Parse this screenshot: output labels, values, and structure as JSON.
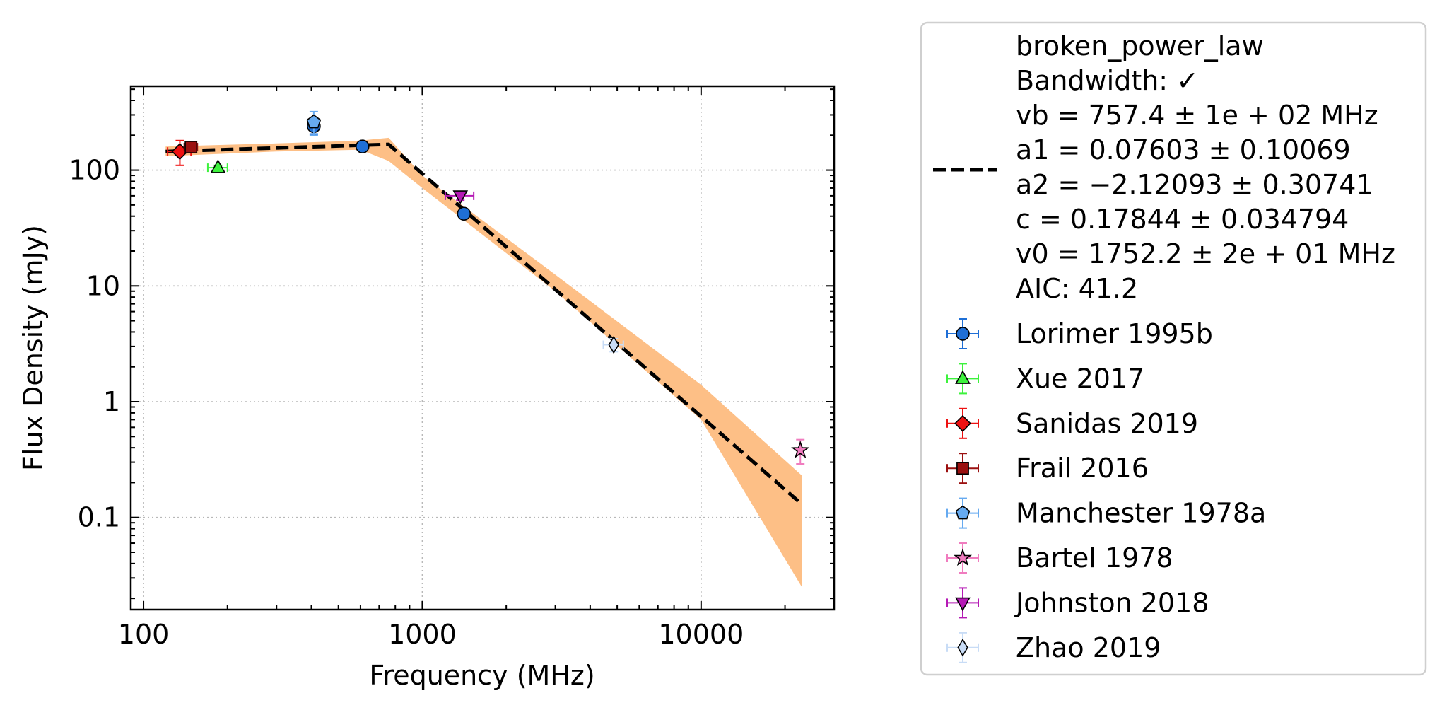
{
  "chart_data": {
    "type": "scatter",
    "title": "",
    "xlabel": "Frequency (MHz)",
    "ylabel": "Flux Density (mJy)",
    "xscale": "log",
    "yscale": "log",
    "xlim": [
      90,
      30000
    ],
    "ylim": [
      0.016,
      530
    ],
    "grid": true,
    "legend_position": "outside-right",
    "x_ticks": [
      {
        "value": 100,
        "label": "100"
      },
      {
        "value": 1000,
        "label": "1000"
      },
      {
        "value": 10000,
        "label": "10000"
      }
    ],
    "y_ticks": [
      {
        "value": 0.1,
        "label": "0.1"
      },
      {
        "value": 1,
        "label": "1"
      },
      {
        "value": 10,
        "label": "10"
      },
      {
        "value": 100,
        "label": "100"
      }
    ],
    "fit": {
      "label_lines": [
        "broken_power_law",
        "Bandwidth: ✓",
        "vb = 757.4 ± 1e + 02 MHz",
        "a1 = 0.07603 ± 0.10069",
        "a2 = −2.12093 ± 0.30741",
        "c = 0.17844 ± 0.034794",
        "v0 = 1752.2 ± 2e + 01 MHz",
        "AIC: 41.2"
      ],
      "line_color": "#000000",
      "band_color": "#fdbf86",
      "x": [
        120,
        757.4,
        23000
      ],
      "y": [
        145,
        167,
        0.13
      ],
      "band_x": [
        120,
        300,
        600,
        757.4,
        1000,
        3000,
        10000,
        23000
      ],
      "band_upper": [
        160,
        170,
        180,
        190,
        90,
        12.5,
        1.4,
        0.23
      ],
      "band_lower": [
        132,
        145,
        150,
        120,
        70,
        9.0,
        0.7,
        0.025
      ]
    },
    "series": [
      {
        "name": "Lorimer 1995b",
        "marker": "circle",
        "color": "#1f6fd6",
        "ecolor": "#1f6fd6",
        "points": [
          {
            "x": 408,
            "y": 240,
            "yerr": 35,
            "xerr": 0
          },
          {
            "x": 610,
            "y": 160,
            "yerr": 8,
            "xerr": 0
          },
          {
            "x": 1410,
            "y": 42,
            "yerr": 3,
            "xerr": 0
          }
        ]
      },
      {
        "name": "Xue 2017",
        "marker": "triangle-up",
        "color": "#3df23d",
        "ecolor": "#3df23d",
        "points": [
          {
            "x": 185,
            "y": 105,
            "yerr": 5,
            "xerr": 15
          }
        ]
      },
      {
        "name": "Sanidas 2019",
        "marker": "diamond",
        "color": "#ee1111",
        "ecolor": "#ee1111",
        "points": [
          {
            "x": 135,
            "y": 145,
            "yerr": 35,
            "xerr": 13
          }
        ]
      },
      {
        "name": "Frail 2016",
        "marker": "square",
        "color": "#9b1010",
        "ecolor": "#9b1010",
        "points": [
          {
            "x": 148,
            "y": 158,
            "yerr": 15,
            "xerr": 8
          }
        ]
      },
      {
        "name": "Manchester 1978a",
        "marker": "pentagon",
        "color": "#66aaf0",
        "ecolor": "#66aaf0",
        "points": [
          {
            "x": 408,
            "y": 260,
            "yerr": 60,
            "xerr": 0
          }
        ]
      },
      {
        "name": "Bartel 1978",
        "marker": "star",
        "color": "#f07cbf",
        "ecolor": "#f07cbf",
        "points": [
          {
            "x": 22700,
            "y": 0.38,
            "yerr": 0.09,
            "xerr": 0
          }
        ]
      },
      {
        "name": "Johnston 2018",
        "marker": "triangle-down",
        "color": "#b51ab5",
        "ecolor": "#b51ab5",
        "points": [
          {
            "x": 1369,
            "y": 60,
            "yerr": 5,
            "xerr": 160
          }
        ]
      },
      {
        "name": "Zhao 2019",
        "marker": "thin-diamond",
        "color": "#c8dcf6",
        "ecolor": "#c8dcf6",
        "points": [
          {
            "x": 4860,
            "y": 3.1,
            "yerr": 0.4,
            "xerr": 400
          }
        ]
      }
    ]
  }
}
